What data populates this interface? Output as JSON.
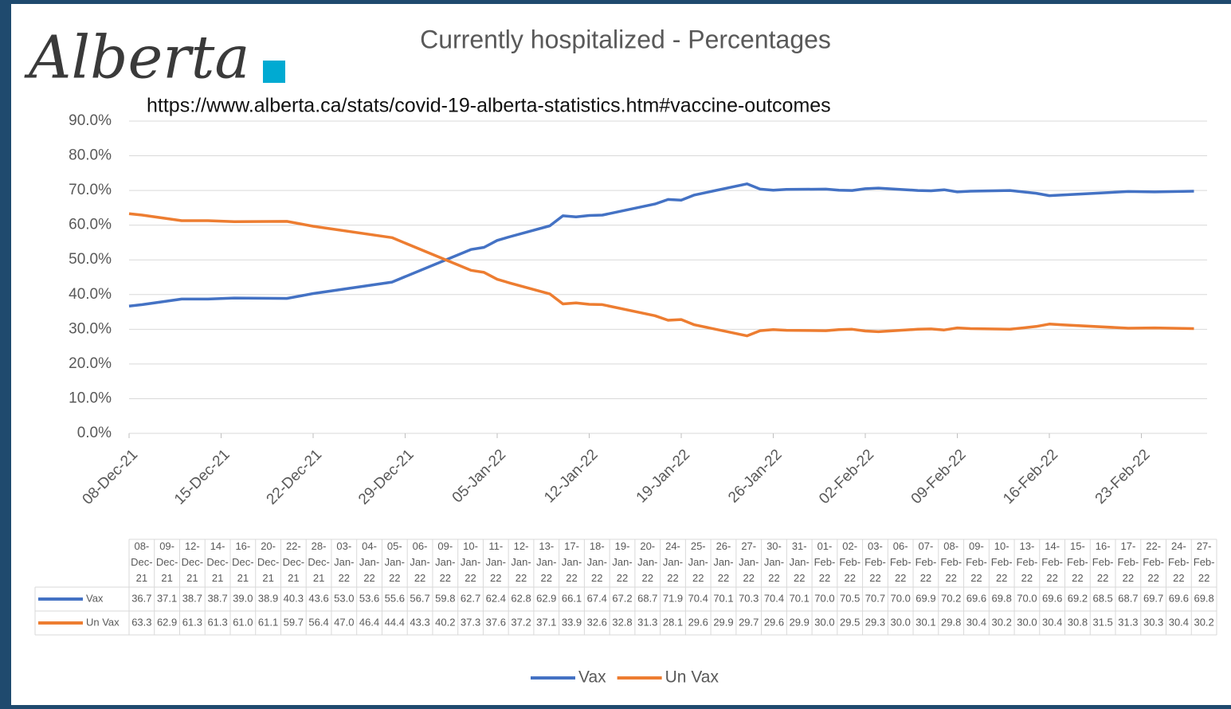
{
  "logo": "Alberta",
  "chart_data": {
    "type": "line",
    "title": "Currently hospitalized - Percentages",
    "subtitle": "https://www.alberta.ca/stats/covid-19-alberta-statistics.htm#vaccine-outcomes",
    "categories": [
      "08-Dec-21",
      "09-Dec-21",
      "12-Dec-21",
      "14-Dec-21",
      "16-Dec-21",
      "20-Dec-21",
      "22-Dec-21",
      "28-Dec-21",
      "03-Jan-22",
      "04-Jan-22",
      "05-Jan-22",
      "06-Jan-22",
      "09-Jan-22",
      "10-Jan-22",
      "11-Jan-22",
      "12-Jan-22",
      "13-Jan-22",
      "17-Jan-22",
      "18-Jan-22",
      "19-Jan-22",
      "20-Jan-22",
      "24-Jan-22",
      "25-Jan-22",
      "26-Jan-22",
      "27-Jan-22",
      "30-Jan-22",
      "31-Jan-22",
      "01-Feb-22",
      "02-Feb-22",
      "03-Feb-22",
      "06-Feb-22",
      "07-Feb-22",
      "08-Feb-22",
      "09-Feb-22",
      "10-Feb-22",
      "13-Feb-22",
      "14-Feb-22",
      "15-Feb-22",
      "16-Feb-22",
      "17-Feb-22",
      "22-Feb-22",
      "24-Feb-22",
      "27-Feb-22"
    ],
    "series": [
      {
        "name": "Vax",
        "color": "#4472c4",
        "values": [
          36.7,
          37.1,
          38.7,
          38.7,
          39.0,
          38.9,
          40.3,
          43.6,
          53.0,
          53.6,
          55.6,
          56.7,
          59.8,
          62.7,
          62.4,
          62.8,
          62.9,
          66.1,
          67.4,
          67.2,
          68.7,
          71.9,
          70.4,
          70.1,
          70.3,
          70.4,
          70.1,
          70.0,
          70.5,
          70.7,
          70.0,
          69.9,
          70.2,
          69.6,
          69.8,
          70.0,
          69.6,
          69.2,
          68.5,
          68.7,
          69.7,
          69.6,
          69.8
        ],
        "value_labels": [
          "36.7",
          "37.1",
          "38.7",
          "38.7",
          "39.0",
          "38.9",
          "40.3",
          "43.6",
          "53.0",
          "53.6",
          "55.6",
          "56.7",
          "59.8",
          "62.7",
          "62.4",
          "62.8",
          "62.9",
          "66.1",
          "67.4",
          "67.2",
          "68.7",
          "71.9",
          "70.4",
          "70.1",
          "70.3",
          "70.4",
          "70.1",
          "70.0",
          "70.5",
          "70.7",
          "70.0",
          "69.9",
          "70.2",
          "69.6",
          "69.8",
          "70.0",
          "69.6",
          "69.2",
          "68.5",
          "68.7",
          "69.7",
          "69.6",
          "69.8"
        ]
      },
      {
        "name": "Un Vax",
        "color": "#ed7d31",
        "values": [
          63.3,
          62.9,
          61.3,
          61.3,
          61.0,
          61.1,
          59.7,
          56.4,
          47.0,
          46.4,
          44.4,
          43.3,
          40.2,
          37.3,
          37.6,
          37.2,
          37.1,
          33.9,
          32.6,
          32.8,
          31.3,
          28.1,
          29.6,
          29.9,
          29.7,
          29.6,
          29.9,
          30.0,
          29.5,
          29.3,
          30.0,
          30.1,
          29.8,
          30.4,
          30.2,
          30.0,
          30.4,
          30.8,
          31.5,
          31.3,
          30.3,
          30.4,
          30.2
        ],
        "value_labels": [
          "63.3",
          "62.9",
          "61.3",
          "61.3",
          "61.0",
          "61.1",
          "59.7",
          "56.4",
          "47.0",
          "46.4",
          "44.4",
          "43.3",
          "40.2",
          "37.3",
          "37.6",
          "37.2",
          "37.1",
          "33.9",
          "32.6",
          "32.8",
          "31.3",
          "28.1",
          "29.6",
          "29.9",
          "29.7",
          "29.6",
          "29.9",
          "30.0",
          "29.5",
          "29.3",
          "30.0",
          "30.1",
          "29.8",
          "30.4",
          "30.2",
          "30.0",
          "30.4",
          "30.8",
          "31.5",
          "31.3",
          "30.3",
          "30.4",
          "30.2"
        ]
      }
    ],
    "xlim": [
      "08-Dec-21",
      "28-Feb-22"
    ],
    "xticks": [
      "08-Dec-21",
      "15-Dec-21",
      "22-Dec-21",
      "29-Dec-21",
      "05-Jan-22",
      "12-Jan-22",
      "19-Jan-22",
      "26-Jan-22",
      "02-Feb-22",
      "09-Feb-22",
      "16-Feb-22",
      "23-Feb-22"
    ],
    "ylim": [
      0,
      90
    ],
    "yticks": [
      {
        "value": 0,
        "label": "0.0%"
      },
      {
        "value": 10,
        "label": "10.0%"
      },
      {
        "value": 20,
        "label": "20.0%"
      },
      {
        "value": 30,
        "label": "30.0%"
      },
      {
        "value": 40,
        "label": "40.0%"
      },
      {
        "value": 50,
        "label": "50.0%"
      },
      {
        "value": 60,
        "label": "60.0%"
      },
      {
        "value": 70,
        "label": "70.0%"
      },
      {
        "value": 80,
        "label": "80.0%"
      },
      {
        "value": 90,
        "label": "90.0%"
      }
    ],
    "grid": true,
    "legend": "bottom"
  }
}
